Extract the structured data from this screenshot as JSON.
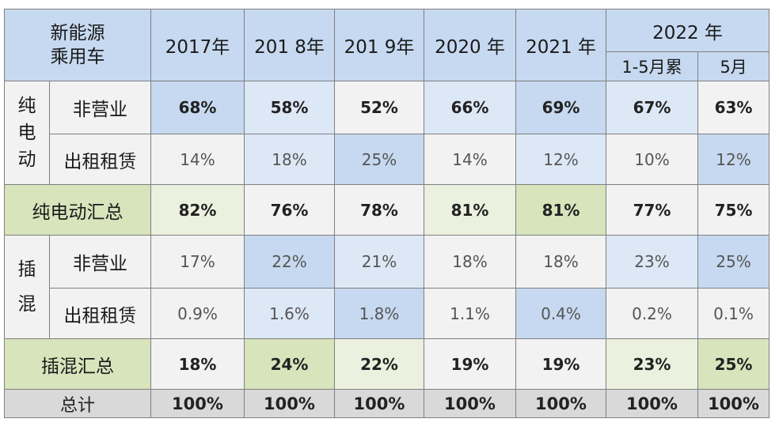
{
  "header": {
    "corner": [
      "新能源",
      "乘用车"
    ],
    "years": [
      "2017年",
      "201 8年",
      "201 9年",
      "2020 年",
      "2021 年"
    ],
    "year2022": "2022 年",
    "sub2022": [
      "1-5月累",
      "5月"
    ]
  },
  "groups": {
    "bev": [
      "纯",
      "电",
      "动"
    ],
    "phev": [
      "插",
      "混"
    ]
  },
  "rows": {
    "bev_private": {
      "label": "非营业",
      "values": [
        "68%",
        "58%",
        "52%",
        "66%",
        "69%",
        "67%",
        "63%"
      ]
    },
    "bev_rental": {
      "label": "出租租赁",
      "values": [
        "14%",
        "18%",
        "25%",
        "14%",
        "12%",
        "10%",
        "12%"
      ]
    },
    "bev_total": {
      "label": "纯电动汇总",
      "values": [
        "82%",
        "76%",
        "78%",
        "81%",
        "81%",
        "77%",
        "75%"
      ]
    },
    "phev_private": {
      "label": "非营业",
      "values": [
        "17%",
        "22%",
        "21%",
        "18%",
        "18%",
        "23%",
        "25%"
      ]
    },
    "phev_rental": {
      "label": "出租租赁",
      "values": [
        "0.9%",
        "1.6%",
        "1.8%",
        "1.1%",
        "0.4%",
        "0.2%",
        "0.1%"
      ]
    },
    "phev_total": {
      "label": "插混汇总",
      "values": [
        "18%",
        "24%",
        "22%",
        "19%",
        "19%",
        "23%",
        "25%"
      ]
    },
    "grand_total": {
      "label": "总计",
      "values": [
        "100%",
        "100%",
        "100%",
        "100%",
        "100%",
        "100%",
        "100%"
      ]
    }
  },
  "chart_data": {
    "type": "table",
    "columns": [
      "2017年",
      "201 8年",
      "201 9年",
      "2020 年",
      "2021 年",
      "2022 年 1-5月累",
      "2022 年 5月"
    ],
    "rows": [
      {
        "group": "纯电动",
        "label": "非营业",
        "values": [
          68,
          58,
          52,
          66,
          69,
          67,
          63
        ]
      },
      {
        "group": "纯电动",
        "label": "出租租赁",
        "values": [
          14,
          18,
          25,
          14,
          12,
          10,
          12
        ]
      },
      {
        "group": "",
        "label": "纯电动汇总",
        "values": [
          82,
          76,
          78,
          81,
          81,
          77,
          75
        ]
      },
      {
        "group": "插混",
        "label": "非营业",
        "values": [
          17,
          22,
          21,
          18,
          18,
          23,
          25
        ]
      },
      {
        "group": "插混",
        "label": "出租租赁",
        "values": [
          0.9,
          1.6,
          1.8,
          1.1,
          0.4,
          0.2,
          0.1
        ]
      },
      {
        "group": "",
        "label": "插混汇总",
        "values": [
          18,
          24,
          22,
          19,
          19,
          23,
          25
        ]
      },
      {
        "group": "",
        "label": "总计",
        "values": [
          100,
          100,
          100,
          100,
          100,
          100,
          100
        ]
      }
    ],
    "unit": "%"
  }
}
